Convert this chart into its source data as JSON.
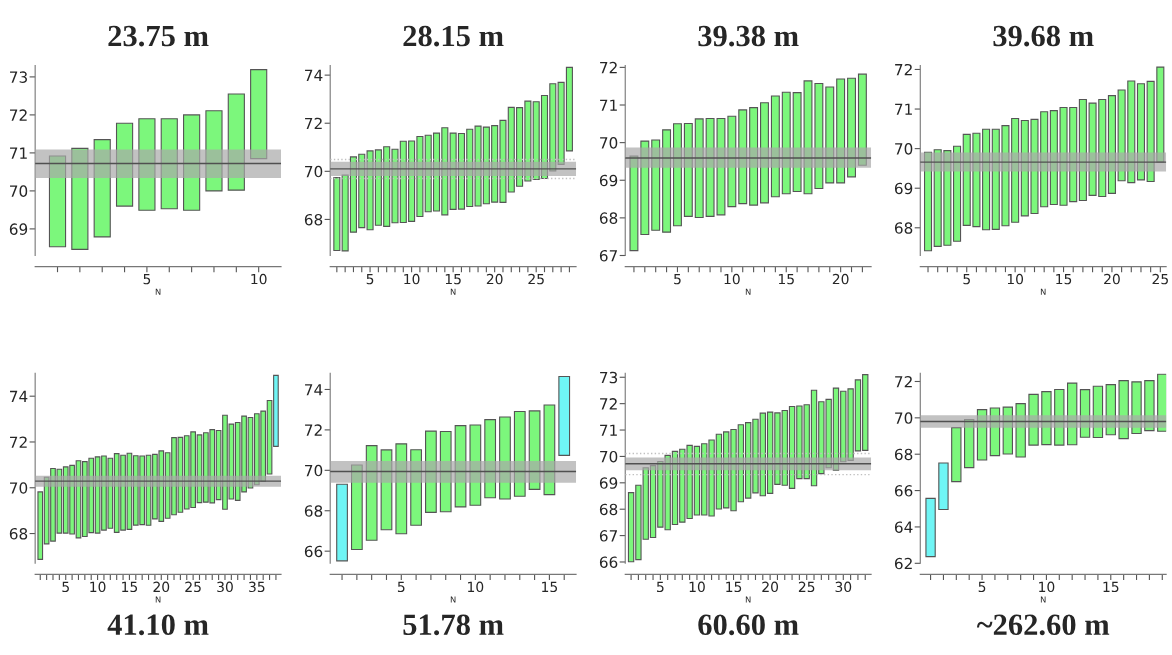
{
  "chart_data": [
    {
      "type": "bar",
      "title": "23.75 m",
      "xlabel": "N",
      "x": [
        1,
        2,
        3,
        4,
        5,
        6,
        7,
        8,
        9,
        10
      ],
      "base": [
        68.53,
        68.46,
        68.79,
        69.6,
        69.49,
        69.53,
        69.49,
        70.0,
        70.02,
        70.85
      ],
      "values": [
        2.39,
        2.66,
        2.56,
        2.18,
        2.41,
        2.37,
        2.51,
        2.11,
        2.53,
        2.34
      ],
      "colors": [
        "#7cf77c",
        "#7cf77c",
        "#7cf77c",
        "#7cf77c",
        "#7cf77c",
        "#7cf77c",
        "#7cf77c",
        "#7cf77c",
        "#7cf77c",
        "#7cf77c"
      ],
      "bands": [
        {
          "axis": "y",
          "from": 70.34,
          "to": 71.09,
          "color": "#a8a8a8"
        }
      ],
      "ref_lines": [
        {
          "axis": "y",
          "value": 70.72,
          "color": "#505050",
          "line_style": "solid"
        }
      ],
      "xlim": [
        0.0,
        11.0
      ],
      "ylim": [
        68.3,
        73.3
      ],
      "xticks": [
        {
          "value": 1,
          "label": null
        },
        {
          "value": 2,
          "label": null
        },
        {
          "value": 3,
          "label": null
        },
        {
          "value": 4,
          "label": null
        },
        5,
        {
          "value": 6,
          "label": null
        },
        {
          "value": 7,
          "label": null
        },
        {
          "value": 8,
          "label": null
        },
        {
          "value": 9,
          "label": null
        },
        10
      ],
      "yticks": [
        69,
        70,
        71,
        72,
        73
      ],
      "grid": false,
      "legend": false
    },
    {
      "type": "bar",
      "title": "28.15 m",
      "xlabel": "N",
      "x": [
        1,
        2,
        3,
        4,
        5,
        6,
        7,
        8,
        9,
        10,
        11,
        12,
        13,
        14,
        15,
        16,
        17,
        18,
        19,
        20,
        21,
        22,
        23,
        24,
        25,
        26,
        27,
        28,
        29
      ],
      "base": [
        66.71,
        66.69,
        67.47,
        67.66,
        67.57,
        67.76,
        67.71,
        67.86,
        67.87,
        67.92,
        68.12,
        68.32,
        68.35,
        68.19,
        68.42,
        68.43,
        68.54,
        68.56,
        68.65,
        68.72,
        68.71,
        69.14,
        69.38,
        69.6,
        69.66,
        69.7,
        70.02,
        70.29,
        70.85
      ],
      "values": [
        3.03,
        3.15,
        3.13,
        3.05,
        3.28,
        3.13,
        3.31,
        3.06,
        3.38,
        3.34,
        3.33,
        3.18,
        3.24,
        3.62,
        3.17,
        3.14,
        3.21,
        3.32,
        3.19,
        3.18,
        3.41,
        3.52,
        3.27,
        3.32,
        3.23,
        3.45,
        3.62,
        3.41,
        3.47
      ],
      "colors": [
        "#7cf77c",
        "#7cf77c",
        "#7cf77c",
        "#7cf77c",
        "#7cf77c",
        "#7cf77c",
        "#7cf77c",
        "#7cf77c",
        "#7cf77c",
        "#7cf77c",
        "#7cf77c",
        "#7cf77c",
        "#7cf77c",
        "#7cf77c",
        "#7cf77c",
        "#7cf77c",
        "#7cf77c",
        "#7cf77c",
        "#7cf77c",
        "#7cf77c",
        "#7cf77c",
        "#7cf77c",
        "#7cf77c",
        "#7cf77c",
        "#7cf77c",
        "#7cf77c",
        "#7cf77c",
        "#7cf77c",
        "#7cf77c"
      ],
      "bands": [
        {
          "axis": "y",
          "from": 69.81,
          "to": 70.4,
          "color": "#a8a8a8"
        }
      ],
      "ref_lines": [
        {
          "axis": "y",
          "value": 70.1,
          "color": "#505050",
          "line_style": "solid"
        },
        {
          "axis": "y",
          "value": 70.49,
          "color": "#c0c0c0",
          "line_style": "dotted"
        },
        {
          "axis": "y",
          "value": 69.7,
          "color": "#c0c0c0",
          "line_style": "dotted"
        }
      ],
      "xlim": [
        0.2,
        29.8
      ],
      "ylim": [
        66.5,
        74.4
      ],
      "xticks": [
        {
          "value": 1,
          "label": null
        },
        {
          "value": 2,
          "label": null
        },
        {
          "value": 3,
          "label": null
        },
        {
          "value": 4,
          "label": null
        },
        5,
        {
          "value": 6,
          "label": null
        },
        {
          "value": 7,
          "label": null
        },
        {
          "value": 8,
          "label": null
        },
        {
          "value": 9,
          "label": null
        },
        10,
        {
          "value": 11,
          "label": null
        },
        {
          "value": 12,
          "label": null
        },
        {
          "value": 13,
          "label": null
        },
        {
          "value": 14,
          "label": null
        },
        15,
        {
          "value": 16,
          "label": null
        },
        {
          "value": 17,
          "label": null
        },
        {
          "value": 18,
          "label": null
        },
        {
          "value": 19,
          "label": null
        },
        20,
        {
          "value": 21,
          "label": null
        },
        {
          "value": 22,
          "label": null
        },
        {
          "value": 23,
          "label": null
        },
        {
          "value": 24,
          "label": null
        },
        25,
        {
          "value": 26,
          "label": null
        },
        {
          "value": 27,
          "label": null
        },
        {
          "value": 28,
          "label": null
        },
        {
          "value": 29,
          "label": null
        }
      ],
      "yticks": [
        68,
        70,
        72,
        74
      ],
      "grid": false,
      "legend": false
    },
    {
      "type": "bar",
      "title": "39.38 m",
      "xlabel": "N",
      "x": [
        1,
        2,
        3,
        4,
        5,
        6,
        7,
        8,
        9,
        10,
        11,
        12,
        13,
        14,
        15,
        16,
        17,
        18,
        19,
        20,
        21,
        22
      ],
      "base": [
        67.13,
        67.56,
        67.67,
        67.62,
        67.79,
        68.04,
        68.01,
        68.04,
        68.08,
        68.3,
        68.38,
        68.34,
        68.4,
        68.56,
        68.64,
        68.7,
        68.64,
        68.78,
        68.93,
        68.93,
        69.09,
        69.4
      ],
      "values": [
        2.51,
        2.48,
        2.4,
        2.72,
        2.71,
        2.47,
        2.62,
        2.6,
        2.56,
        2.4,
        2.49,
        2.59,
        2.66,
        2.68,
        2.7,
        2.63,
        3.0,
        2.79,
        2.55,
        2.76,
        2.62,
        2.42
      ],
      "colors": [
        "#7cf77c",
        "#7cf77c",
        "#7cf77c",
        "#7cf77c",
        "#7cf77c",
        "#7cf77c",
        "#7cf77c",
        "#7cf77c",
        "#7cf77c",
        "#7cf77c",
        "#7cf77c",
        "#7cf77c",
        "#7cf77c",
        "#7cf77c",
        "#7cf77c",
        "#7cf77c",
        "#7cf77c",
        "#7cf77c",
        "#7cf77c",
        "#7cf77c",
        "#7cf77c",
        "#7cf77c"
      ],
      "bands": [
        {
          "axis": "y",
          "from": 69.33,
          "to": 69.87,
          "color": "#a8a8a8"
        }
      ],
      "ref_lines": [
        {
          "axis": "y",
          "value": 69.59,
          "color": "#505050",
          "line_style": "solid"
        }
      ],
      "xlim": [
        0.2,
        22.8
      ],
      "ylim": [
        67.0,
        72.05
      ],
      "xticks": [
        {
          "value": 1,
          "label": null
        },
        {
          "value": 2,
          "label": null
        },
        {
          "value": 3,
          "label": null
        },
        {
          "value": 4,
          "label": null
        },
        5,
        {
          "value": 6,
          "label": null
        },
        {
          "value": 7,
          "label": null
        },
        {
          "value": 8,
          "label": null
        },
        {
          "value": 9,
          "label": null
        },
        10,
        {
          "value": 11,
          "label": null
        },
        {
          "value": 12,
          "label": null
        },
        {
          "value": 13,
          "label": null
        },
        {
          "value": 14,
          "label": null
        },
        15,
        {
          "value": 16,
          "label": null
        },
        {
          "value": 17,
          "label": null
        },
        {
          "value": 18,
          "label": null
        },
        {
          "value": 19,
          "label": null
        },
        20,
        {
          "value": 21,
          "label": null
        },
        {
          "value": 22,
          "label": null
        }
      ],
      "yticks": [
        67,
        68,
        69,
        70,
        71,
        72
      ],
      "grid": false,
      "legend": false
    },
    {
      "type": "bar",
      "title": "39.68 m",
      "xlabel": "N",
      "x": [
        1,
        2,
        3,
        4,
        5,
        6,
        7,
        8,
        9,
        10,
        11,
        12,
        13,
        14,
        15,
        16,
        17,
        18,
        19,
        20,
        21,
        22,
        23,
        24,
        25
      ],
      "base": [
        67.42,
        67.53,
        67.56,
        67.66,
        68.06,
        68.03,
        67.95,
        67.96,
        68.05,
        68.14,
        68.3,
        68.36,
        68.53,
        68.59,
        68.57,
        68.66,
        68.69,
        68.82,
        68.79,
        68.87,
        69.19,
        69.14,
        69.21,
        69.17,
        69.66
      ],
      "values": [
        2.49,
        2.44,
        2.39,
        2.4,
        2.3,
        2.36,
        2.54,
        2.53,
        2.53,
        2.62,
        2.41,
        2.38,
        2.4,
        2.37,
        2.47,
        2.38,
        2.55,
        2.33,
        2.45,
        2.47,
        2.29,
        2.57,
        2.43,
        2.53,
        2.4
      ],
      "colors": [
        "#7cf77c",
        "#7cf77c",
        "#7cf77c",
        "#7cf77c",
        "#7cf77c",
        "#7cf77c",
        "#7cf77c",
        "#7cf77c",
        "#7cf77c",
        "#7cf77c",
        "#7cf77c",
        "#7cf77c",
        "#7cf77c",
        "#7cf77c",
        "#7cf77c",
        "#7cf77c",
        "#7cf77c",
        "#7cf77c",
        "#7cf77c",
        "#7cf77c",
        "#7cf77c",
        "#7cf77c",
        "#7cf77c",
        "#7cf77c",
        "#7cf77c"
      ],
      "bands": [
        {
          "axis": "y",
          "from": 69.42,
          "to": 69.9,
          "color": "#a8a8a8"
        }
      ],
      "ref_lines": [
        {
          "axis": "y",
          "value": 69.66,
          "color": "#505050",
          "line_style": "solid"
        }
      ],
      "xlim": [
        0.2,
        25.6
      ],
      "ylim": [
        67.3,
        72.1
      ],
      "xticks": [
        {
          "value": 1,
          "label": null
        },
        {
          "value": 2,
          "label": null
        },
        {
          "value": 3,
          "label": null
        },
        {
          "value": 4,
          "label": null
        },
        5,
        {
          "value": 6,
          "label": null
        },
        {
          "value": 7,
          "label": null
        },
        {
          "value": 8,
          "label": null
        },
        {
          "value": 9,
          "label": null
        },
        10,
        {
          "value": 11,
          "label": null
        },
        {
          "value": 12,
          "label": null
        },
        {
          "value": 13,
          "label": null
        },
        {
          "value": 14,
          "label": null
        },
        15,
        {
          "value": 16,
          "label": null
        },
        {
          "value": 17,
          "label": null
        },
        {
          "value": 18,
          "label": null
        },
        {
          "value": 19,
          "label": null
        },
        20,
        {
          "value": 21,
          "label": null
        },
        {
          "value": 22,
          "label": null
        },
        {
          "value": 23,
          "label": null
        },
        {
          "value": 24,
          "label": null
        },
        25
      ],
      "yticks": [
        68,
        69,
        70,
        71,
        72
      ],
      "grid": false,
      "legend": false
    },
    {
      "type": "bar",
      "title": "41.10 m",
      "xlabel": "N",
      "x": [
        1,
        2,
        3,
        4,
        5,
        6,
        7,
        8,
        9,
        10,
        11,
        12,
        13,
        14,
        15,
        16,
        17,
        18,
        19,
        20,
        21,
        22,
        23,
        24,
        25,
        26,
        27,
        28,
        29,
        30,
        31,
        32,
        33,
        34,
        35,
        36,
        37,
        38
      ],
      "base": [
        66.87,
        67.55,
        67.67,
        68.02,
        68.02,
        67.98,
        67.81,
        67.87,
        68.04,
        68.02,
        68.15,
        68.23,
        68.05,
        68.15,
        68.18,
        68.37,
        68.39,
        68.36,
        68.64,
        68.53,
        68.67,
        68.82,
        68.93,
        69.07,
        69.14,
        69.35,
        69.37,
        69.34,
        69.48,
        69.06,
        69.51,
        69.45,
        69.82,
        69.99,
        70.13,
        70.28,
        70.6,
        71.81
      ],
      "values": [
        2.95,
        2.91,
        3.17,
        2.79,
        2.89,
        3.0,
        3.37,
        3.27,
        3.25,
        3.33,
        3.24,
        3.06,
        3.44,
        3.27,
        3.33,
        3.03,
        3.0,
        3.06,
        2.82,
        3.08,
        2.86,
        3.37,
        3.27,
        3.2,
        3.3,
        2.96,
        3.03,
        3.2,
        3.02,
        4.11,
        3.27,
        3.4,
        3.31,
        3.08,
        3.1,
        3.07,
        3.21,
        3.1
      ],
      "colors": [
        "#7cf77c",
        "#7cf77c",
        "#7cf77c",
        "#7cf77c",
        "#7cf77c",
        "#7cf77c",
        "#7cf77c",
        "#7cf77c",
        "#7cf77c",
        "#7cf77c",
        "#7cf77c",
        "#7cf77c",
        "#7cf77c",
        "#7cf77c",
        "#7cf77c",
        "#7cf77c",
        "#7cf77c",
        "#7cf77c",
        "#7cf77c",
        "#7cf77c",
        "#7cf77c",
        "#7cf77c",
        "#7cf77c",
        "#7cf77c",
        "#7cf77c",
        "#7cf77c",
        "#7cf77c",
        "#7cf77c",
        "#7cf77c",
        "#7cf77c",
        "#7cf77c",
        "#7cf77c",
        "#7cf77c",
        "#7cf77c",
        "#7cf77c",
        "#7cf77c",
        "#7cf77c",
        "#6ff5f5"
      ],
      "bands": [
        {
          "axis": "y",
          "from": 70.04,
          "to": 70.53,
          "color": "#a8a8a8"
        }
      ],
      "ref_lines": [
        {
          "axis": "y",
          "value": 70.29,
          "color": "#505050",
          "line_style": "solid"
        }
      ],
      "xlim": [
        0.2,
        38.8
      ],
      "ylim": [
        66.7,
        75.0
      ],
      "xticks": [
        {
          "value": 1,
          "label": null
        },
        {
          "value": 2,
          "label": null
        },
        {
          "value": 3,
          "label": null
        },
        {
          "value": 4,
          "label": null
        },
        5,
        {
          "value": 6,
          "label": null
        },
        {
          "value": 7,
          "label": null
        },
        {
          "value": 8,
          "label": null
        },
        {
          "value": 9,
          "label": null
        },
        10,
        {
          "value": 11,
          "label": null
        },
        {
          "value": 12,
          "label": null
        },
        {
          "value": 13,
          "label": null
        },
        {
          "value": 14,
          "label": null
        },
        15,
        {
          "value": 16,
          "label": null
        },
        {
          "value": 17,
          "label": null
        },
        {
          "value": 18,
          "label": null
        },
        {
          "value": 19,
          "label": null
        },
        20,
        {
          "value": 21,
          "label": null
        },
        {
          "value": 22,
          "label": null
        },
        {
          "value": 23,
          "label": null
        },
        {
          "value": 24,
          "label": null
        },
        25,
        {
          "value": 26,
          "label": null
        },
        {
          "value": 27,
          "label": null
        },
        {
          "value": 28,
          "label": null
        },
        {
          "value": 29,
          "label": null
        },
        30,
        {
          "value": 31,
          "label": null
        },
        {
          "value": 32,
          "label": null
        },
        {
          "value": 33,
          "label": null
        },
        {
          "value": 34,
          "label": null
        },
        35,
        {
          "value": 36,
          "label": null
        },
        {
          "value": 37,
          "label": null
        },
        {
          "value": 38,
          "label": null
        }
      ],
      "yticks": [
        68,
        70,
        72,
        74
      ],
      "grid": false,
      "legend": false
    },
    {
      "type": "bar",
      "title": "51.78 m",
      "xlabel": "N",
      "x": [
        1,
        2,
        3,
        4,
        5,
        6,
        7,
        8,
        9,
        10,
        11,
        12,
        13,
        14,
        15,
        16
      ],
      "base": [
        65.52,
        66.08,
        66.54,
        67.06,
        66.86,
        67.28,
        67.92,
        67.95,
        68.19,
        68.27,
        68.64,
        68.58,
        68.72,
        69.06,
        68.8,
        70.74
      ],
      "values": [
        3.79,
        4.18,
        4.68,
        3.95,
        4.45,
        3.74,
        4.02,
        3.97,
        4.02,
        3.97,
        3.87,
        4.06,
        4.19,
        3.88,
        4.43,
        3.9
      ],
      "colors": [
        "#6ff5f5",
        "#7cf77c",
        "#7cf77c",
        "#7cf77c",
        "#7cf77c",
        "#7cf77c",
        "#7cf77c",
        "#7cf77c",
        "#7cf77c",
        "#7cf77c",
        "#7cf77c",
        "#7cf77c",
        "#7cf77c",
        "#7cf77c",
        "#7cf77c",
        "#6ff5f5"
      ],
      "bands": [
        {
          "axis": "y",
          "from": 69.39,
          "to": 70.46,
          "color": "#a8a8a8"
        }
      ],
      "ref_lines": [
        {
          "axis": "y",
          "value": 69.94,
          "color": "#505050",
          "line_style": "solid"
        }
      ],
      "xlim": [
        0.2,
        16.8
      ],
      "ylim": [
        65.4,
        74.8
      ],
      "xticks": [
        {
          "value": 1,
          "label": null
        },
        {
          "value": 2,
          "label": null
        },
        {
          "value": 3,
          "label": null
        },
        {
          "value": 4,
          "label": null
        },
        5,
        {
          "value": 6,
          "label": null
        },
        {
          "value": 7,
          "label": null
        },
        {
          "value": 8,
          "label": null
        },
        {
          "value": 9,
          "label": null
        },
        10,
        {
          "value": 11,
          "label": null
        },
        {
          "value": 12,
          "label": null
        },
        {
          "value": 13,
          "label": null
        },
        {
          "value": 14,
          "label": null
        },
        15,
        {
          "value": 16,
          "label": null
        }
      ],
      "yticks": [
        66,
        68,
        70,
        72,
        74
      ],
      "grid": false,
      "legend": false
    },
    {
      "type": "bar",
      "title": "60.60 m",
      "xlabel": "N",
      "x": [
        1,
        2,
        3,
        4,
        5,
        6,
        7,
        8,
        9,
        10,
        11,
        12,
        13,
        14,
        15,
        16,
        17,
        18,
        19,
        20,
        21,
        22,
        23,
        24,
        25,
        26,
        27,
        28,
        29,
        30,
        31,
        32,
        33
      ],
      "base": [
        66.01,
        66.09,
        66.86,
        66.93,
        67.32,
        67.22,
        67.42,
        67.51,
        67.65,
        67.78,
        67.78,
        67.74,
        68.01,
        68.05,
        67.94,
        68.28,
        68.42,
        68.62,
        68.51,
        68.6,
        68.94,
        68.91,
        68.79,
        69.16,
        69.16,
        68.89,
        69.35,
        69.57,
        69.48,
        69.8,
        69.85,
        70.21,
        70.23
      ],
      "values": [
        2.62,
        2.82,
        2.71,
        2.72,
        2.49,
        2.82,
        2.77,
        2.76,
        2.77,
        2.6,
        2.7,
        2.88,
        2.83,
        2.88,
        3.08,
        2.92,
        2.86,
        2.79,
        3.13,
        3.08,
        2.71,
        2.83,
        3.1,
        2.75,
        2.8,
        3.62,
        2.72,
        2.59,
        3.11,
        2.67,
        2.71,
        2.69,
        2.87
      ],
      "colors": [
        "#7cf77c",
        "#7cf77c",
        "#7cf77c",
        "#7cf77c",
        "#7cf77c",
        "#7cf77c",
        "#7cf77c",
        "#7cf77c",
        "#7cf77c",
        "#7cf77c",
        "#7cf77c",
        "#7cf77c",
        "#7cf77c",
        "#7cf77c",
        "#7cf77c",
        "#7cf77c",
        "#7cf77c",
        "#7cf77c",
        "#7cf77c",
        "#7cf77c",
        "#7cf77c",
        "#7cf77c",
        "#7cf77c",
        "#7cf77c",
        "#7cf77c",
        "#7cf77c",
        "#7cf77c",
        "#7cf77c",
        "#7cf77c",
        "#7cf77c",
        "#7cf77c",
        "#7cf77c",
        "#7cf77c"
      ],
      "bands": [
        {
          "axis": "y",
          "from": 69.48,
          "to": 69.96,
          "color": "#a8a8a8"
        }
      ],
      "ref_lines": [
        {
          "axis": "y",
          "value": 69.72,
          "color": "#505050",
          "line_style": "solid"
        },
        {
          "axis": "y",
          "value": 70.11,
          "color": "#c0c0c0",
          "line_style": "dotted"
        },
        {
          "axis": "y",
          "value": 69.31,
          "color": "#c0c0c0",
          "line_style": "dotted"
        }
      ],
      "xlim": [
        0.2,
        33.8
      ],
      "ylim": [
        65.95,
        73.15
      ],
      "xticks": [
        {
          "value": 1,
          "label": null
        },
        {
          "value": 2,
          "label": null
        },
        {
          "value": 3,
          "label": null
        },
        {
          "value": 4,
          "label": null
        },
        5,
        {
          "value": 6,
          "label": null
        },
        {
          "value": 7,
          "label": null
        },
        {
          "value": 8,
          "label": null
        },
        {
          "value": 9,
          "label": null
        },
        10,
        {
          "value": 11,
          "label": null
        },
        {
          "value": 12,
          "label": null
        },
        {
          "value": 13,
          "label": null
        },
        {
          "value": 14,
          "label": null
        },
        15,
        {
          "value": 16,
          "label": null
        },
        {
          "value": 17,
          "label": null
        },
        {
          "value": 18,
          "label": null
        },
        {
          "value": 19,
          "label": null
        },
        20,
        {
          "value": 21,
          "label": null
        },
        {
          "value": 22,
          "label": null
        },
        {
          "value": 23,
          "label": null
        },
        {
          "value": 24,
          "label": null
        },
        25,
        {
          "value": 26,
          "label": null
        },
        {
          "value": 27,
          "label": null
        },
        {
          "value": 28,
          "label": null
        },
        {
          "value": 29,
          "label": null
        },
        30,
        {
          "value": 31,
          "label": null
        },
        {
          "value": 32,
          "label": null
        },
        {
          "value": 33,
          "label": null
        }
      ],
      "yticks": [
        66,
        67,
        68,
        69,
        70,
        71,
        72,
        73
      ],
      "grid": false,
      "legend": false
    },
    {
      "type": "bar",
      "title": "~262.60 m",
      "xlabel": "N",
      "x": [
        1,
        2,
        3,
        4,
        5,
        6,
        7,
        8,
        9,
        10,
        11,
        12,
        13,
        14,
        15,
        16,
        17,
        18,
        19
      ],
      "base": [
        62.37,
        64.96,
        66.49,
        67.26,
        67.68,
        67.92,
        68.01,
        67.85,
        68.5,
        68.53,
        68.5,
        68.52,
        68.93,
        68.92,
        69.07,
        68.86,
        69.14,
        69.3,
        69.26
      ],
      "values": [
        3.2,
        2.56,
        2.97,
        2.65,
        2.77,
        2.62,
        2.58,
        2.93,
        2.79,
        2.91,
        3.06,
        3.39,
        2.62,
        2.82,
        2.76,
        3.19,
        2.84,
        2.75,
        3.14
      ],
      "colors": [
        "#6ff5f5",
        "#6ff5f5",
        "#7cf77c",
        "#7cf77c",
        "#7cf77c",
        "#7cf77c",
        "#7cf77c",
        "#7cf77c",
        "#7cf77c",
        "#7cf77c",
        "#7cf77c",
        "#7cf77c",
        "#7cf77c",
        "#7cf77c",
        "#7cf77c",
        "#7cf77c",
        "#7cf77c",
        "#7cf77c",
        "#7cf77c"
      ],
      "bands": [
        {
          "axis": "y",
          "from": 69.46,
          "to": 70.14,
          "color": "#a8a8a8"
        }
      ],
      "ref_lines": [
        {
          "axis": "y",
          "value": 69.8,
          "color": "#505050",
          "line_style": "solid"
        }
      ],
      "xlim": [
        0.2,
        19.3
      ],
      "ylim": [
        62.0,
        72.45
      ],
      "xticks": [
        {
          "value": 1,
          "label": null
        },
        {
          "value": 2,
          "label": null
        },
        {
          "value": 3,
          "label": null
        },
        {
          "value": 4,
          "label": null
        },
        5,
        {
          "value": 6,
          "label": null
        },
        {
          "value": 7,
          "label": null
        },
        {
          "value": 8,
          "label": null
        },
        {
          "value": 9,
          "label": null
        },
        10,
        {
          "value": 11,
          "label": null
        },
        {
          "value": 12,
          "label": null
        },
        {
          "value": 13,
          "label": null
        },
        {
          "value": 14,
          "label": null
        },
        15,
        {
          "value": 16,
          "label": null
        },
        {
          "value": 17,
          "label": null
        },
        {
          "value": 18,
          "label": null
        },
        {
          "value": 19,
          "label": null
        }
      ],
      "yticks": [
        62,
        64,
        66,
        68,
        70,
        72
      ],
      "grid": false,
      "legend": false
    }
  ]
}
